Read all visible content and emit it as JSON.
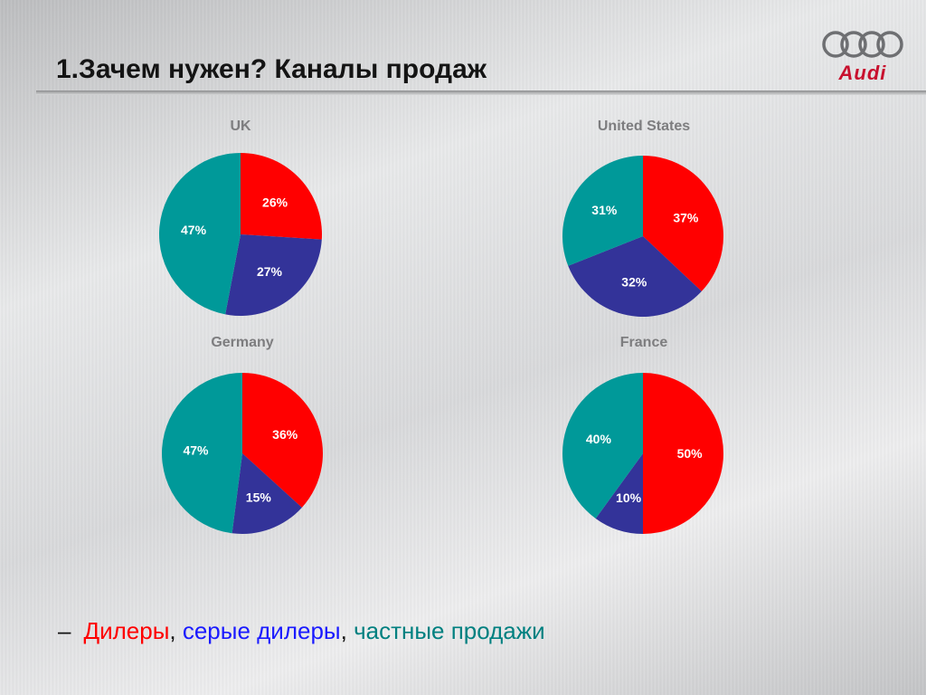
{
  "slide": {
    "title": "1.Зачем нужен? Каналы продаж",
    "logo_text": "Audi"
  },
  "legend": {
    "dash": "–",
    "dealers": "Дилеры",
    "sep1": ", ",
    "grey_dealers": "серые дилеры",
    "sep2": ", ",
    "private_sales": "частные продажи"
  },
  "colors": {
    "dealers": "#ff0000",
    "grey_dealers": "#333399",
    "private_sales": "#009999",
    "legend_grey": "#1a1aff",
    "legend_private": "#008080"
  },
  "chart_data": [
    {
      "type": "pie",
      "title": "UK",
      "labels": [
        "26%",
        "27%",
        "47%"
      ],
      "values": [
        26,
        27,
        47
      ]
    },
    {
      "type": "pie",
      "title": "United States",
      "labels": [
        "37%",
        "32%",
        "31%"
      ],
      "values": [
        37,
        32,
        31
      ]
    },
    {
      "type": "pie",
      "title": "Germany",
      "labels": [
        "36%",
        "15%",
        "47%"
      ],
      "values": [
        36,
        15,
        47
      ]
    },
    {
      "type": "pie",
      "title": "France",
      "labels": [
        "50%",
        "10%",
        "40%"
      ],
      "values": [
        50,
        10,
        40
      ]
    }
  ]
}
